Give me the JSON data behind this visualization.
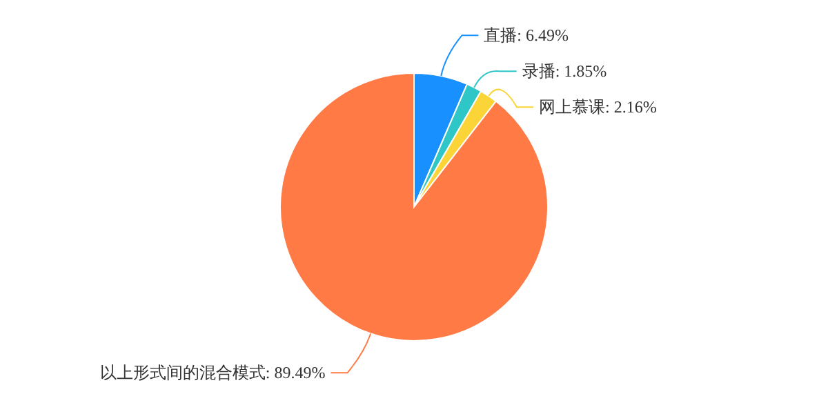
{
  "chart_data": {
    "type": "pie",
    "categories": [
      "直播",
      "录播",
      "网上慕课",
      "以上形式间的混合模式"
    ],
    "values": [
      6.49,
      1.85,
      2.16,
      89.49
    ],
    "value_labels": [
      ": 6.49%",
      ": 1.85%",
      ": 2.16%",
      ": 89.49%"
    ],
    "colors": [
      "#1890ff",
      "#2fc6c8",
      "#fbd437",
      "#ff7a45"
    ],
    "legend": false
  }
}
